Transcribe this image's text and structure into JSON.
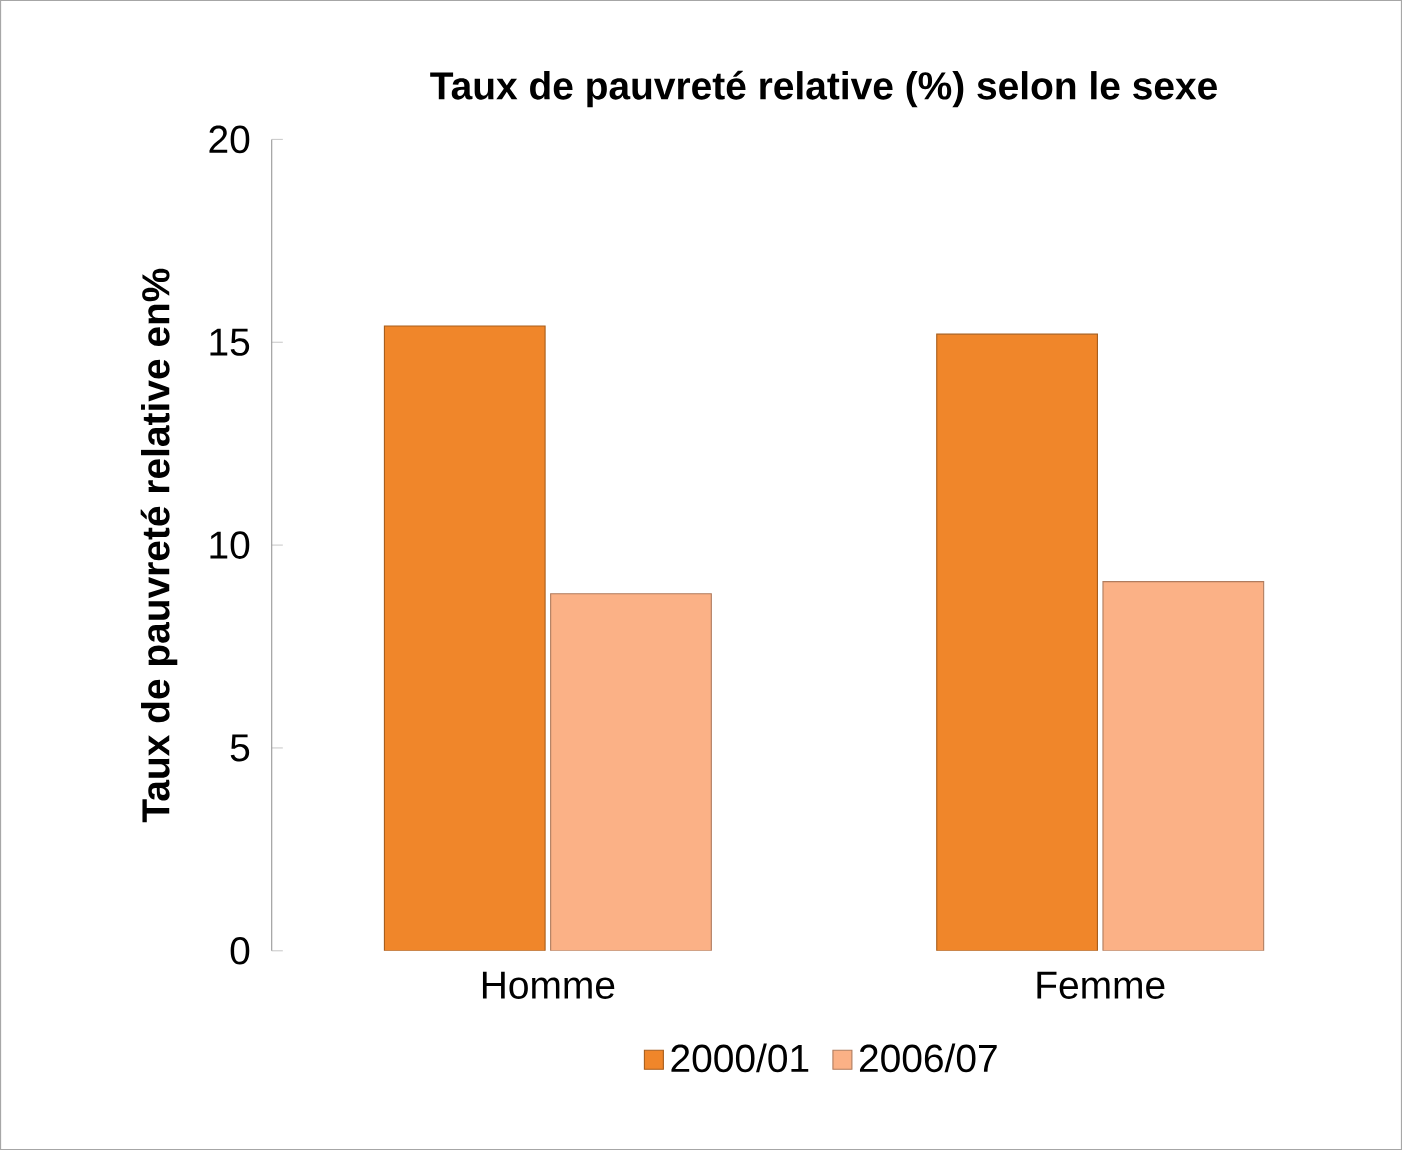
{
  "chart_data": {
    "type": "bar",
    "title": "Taux de pauvreté relative (%) selon le sexe",
    "ylabel": "Taux de pauvreté relative en%",
    "categories": [
      "Homme",
      "Femme"
    ],
    "series": [
      {
        "name": "2000/01",
        "color": "#f0862a",
        "values": [
          15.4,
          15.2
        ]
      },
      {
        "name": "2006/07",
        "color": "#fbb186",
        "values": [
          8.8,
          9.1
        ]
      }
    ],
    "ylim": [
      0,
      20
    ],
    "yticks": [
      0,
      5,
      10,
      15,
      20
    ],
    "grid": false,
    "legend": "bottom"
  }
}
